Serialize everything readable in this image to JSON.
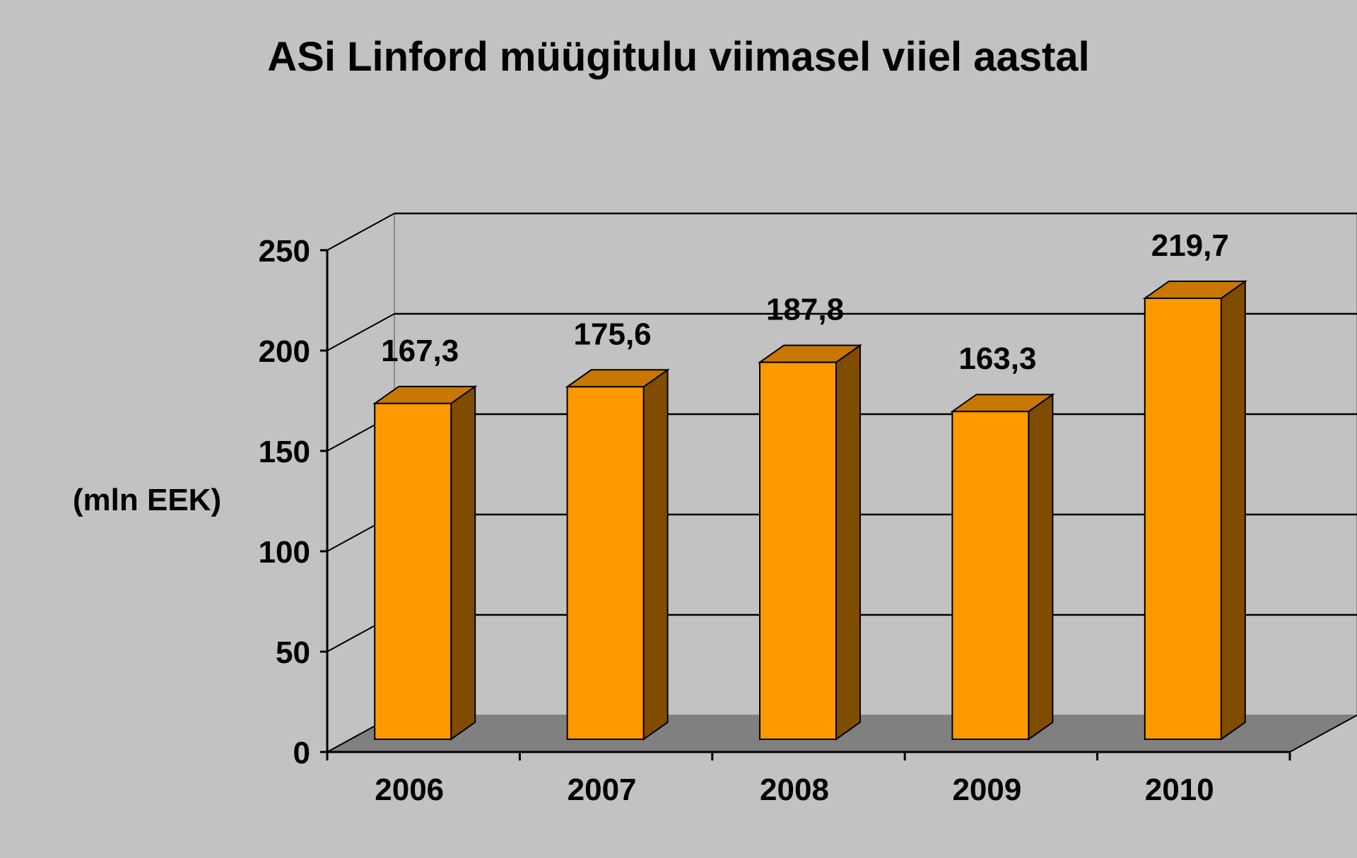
{
  "chart_data": {
    "type": "bar",
    "title": "ASi Linford müügitulu viimasel viiel aastal",
    "ylabel": "(mln EEK)",
    "xlabel": "",
    "categories": [
      "2006",
      "2007",
      "2008",
      "2009",
      "2010"
    ],
    "values": [
      167.3,
      175.6,
      187.8,
      163.3,
      219.7
    ],
    "value_labels": [
      "167,3",
      "175,6",
      "187,8",
      "163,3",
      "219,7"
    ],
    "yticks": [
      "0",
      "50",
      "100",
      "150",
      "200",
      "250"
    ],
    "ylim": [
      0,
      250
    ],
    "grid": true,
    "legend": "none",
    "style": "3d",
    "colors": {
      "background": "#c2c2c2",
      "bar_front": "#ff9900",
      "bar_top": "#c87800",
      "bar_side": "#7f4c00",
      "floor": "#808080",
      "wall": "#c2c2c2",
      "gridline": "#000000"
    }
  }
}
